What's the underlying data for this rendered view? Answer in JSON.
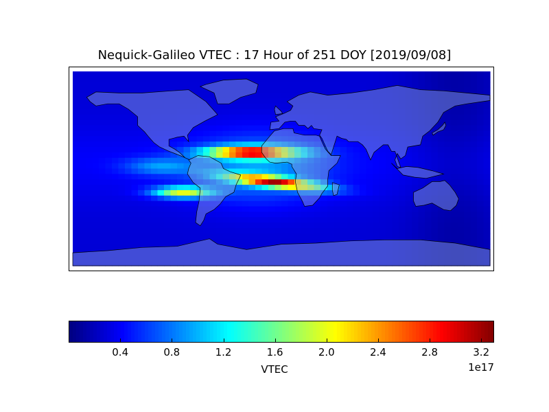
{
  "title": "Nequick-Galileo VTEC : 17 Hour of 251 DOY [2019/09/08]",
  "colorbar": {
    "label": "VTEC",
    "exponent": "1e17",
    "min": 0.0,
    "max": 3.3,
    "colormap": "jet",
    "ticks": [
      "0.4",
      "0.8",
      "1.2",
      "1.6",
      "2.0",
      "2.4",
      "2.8",
      "3.2"
    ],
    "tick_values": [
      0.4,
      0.8,
      1.2,
      1.6,
      2.0,
      2.4,
      2.8,
      3.2
    ]
  },
  "map": {
    "projection": "equirectangular",
    "lon_range": [
      -180,
      180
    ],
    "lat_range": [
      -90,
      90
    ],
    "coastlines": true,
    "country_borders": true,
    "land_overlay_color": "#9ab4d8"
  },
  "chart_data": {
    "type": "heatmap",
    "title": "Nequick-Galileo VTEC : 17 Hour of 251 DOY [2019/09/08]",
    "value_label": "VTEC",
    "value_scale": "1e17",
    "vmin": 0.0,
    "vmax": 3.3,
    "background_level": 0.3,
    "features": [
      {
        "name": "northern crest",
        "lon_range": [
          -90,
          30
        ],
        "lat": 15,
        "peak": 3.1
      },
      {
        "name": "southern crest",
        "lon_range": [
          -75,
          40
        ],
        "lat": -12,
        "peak": 3.0
      },
      {
        "name": "southern crest extension",
        "lon_range": [
          -110,
          -60
        ],
        "lat": -20,
        "peak": 2.3
      }
    ]
  }
}
